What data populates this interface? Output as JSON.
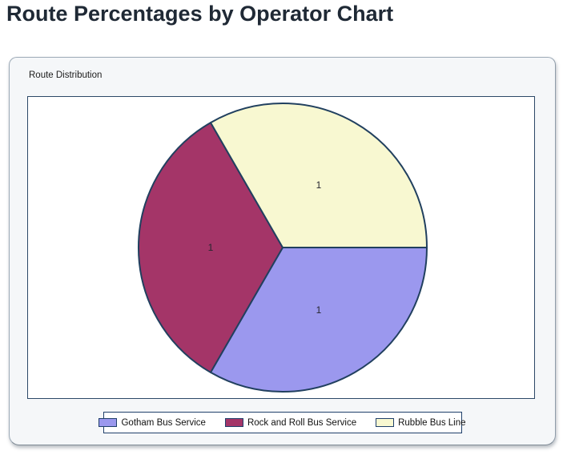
{
  "page": {
    "title": "Route Percentages by Operator Chart"
  },
  "panel": {
    "group_label": "Route Distribution"
  },
  "colors": {
    "title_text": "#1f2935",
    "panel_bg": "#f5f7f9",
    "panel_border": "#9daab7",
    "chart_area_border": "#2c4867",
    "pie_stroke": "#21405f",
    "legend_border": "#20406b",
    "data_label_text": "#26262e"
  },
  "chart_data": {
    "type": "pie",
    "title": "Route Distribution",
    "legend_position": "bottom",
    "start_angle_deg": 0,
    "direction": "clockwise",
    "data_labels_shown": true,
    "slices": [
      {
        "label": "Gotham Bus Service",
        "value": 1,
        "data_label": "1",
        "color": "#9b98ee"
      },
      {
        "label": "Rock and Roll Bus Service",
        "value": 1,
        "data_label": "1",
        "color": "#a43568"
      },
      {
        "label": "Rubble Bus Line",
        "value": 1,
        "data_label": "1",
        "color": "#f8f8d1"
      }
    ]
  }
}
